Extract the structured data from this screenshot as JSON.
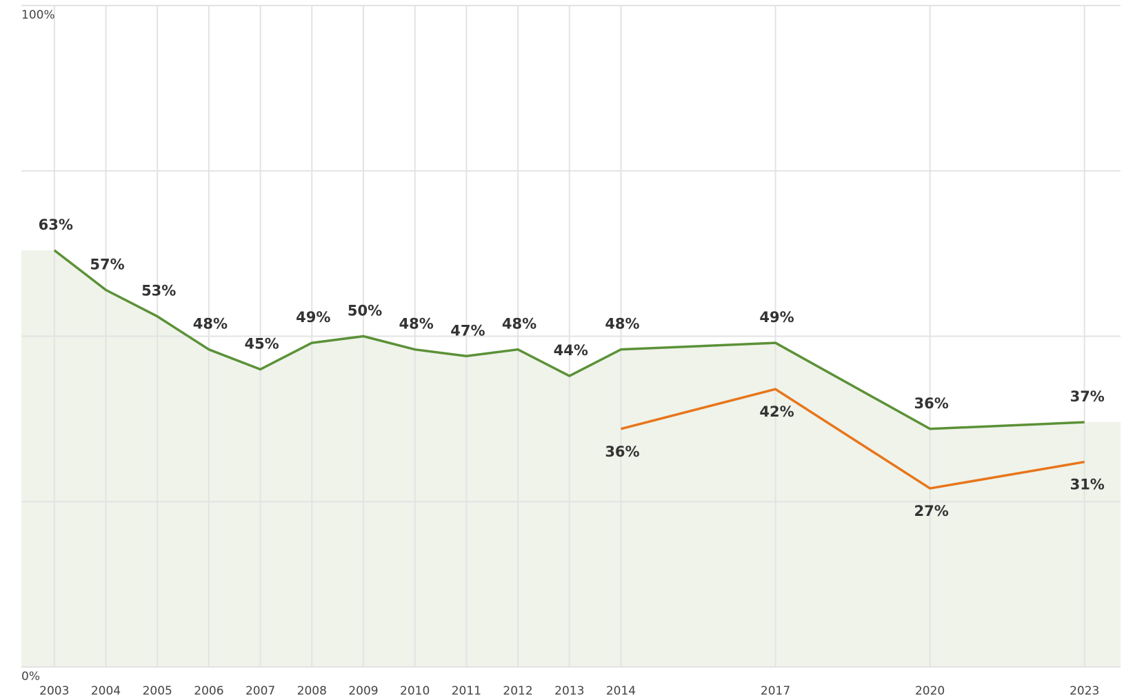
{
  "chart_data": {
    "type": "line",
    "x": [
      2003,
      2004,
      2005,
      2006,
      2007,
      2008,
      2009,
      2010,
      2011,
      2012,
      2013,
      2014,
      2017,
      2020,
      2023
    ],
    "series": [
      {
        "color": "#5b9137",
        "area_color": "#eff3ea",
        "values": [
          63,
          57,
          53,
          48,
          45,
          49,
          50,
          48,
          47,
          48,
          44,
          48,
          49,
          36,
          37
        ],
        "value_labels": [
          "63%",
          "57%",
          "53%",
          "48%",
          "45%",
          "49%",
          "50%",
          "48%",
          "47%",
          "48%",
          "44%",
          "48%",
          "49%",
          "36%",
          "37%"
        ]
      },
      {
        "color": "#e8751a",
        "values": [
          null,
          null,
          null,
          null,
          null,
          null,
          null,
          null,
          null,
          null,
          null,
          36,
          42,
          27,
          31
        ],
        "value_labels": [
          null,
          null,
          null,
          null,
          null,
          null,
          null,
          null,
          null,
          null,
          null,
          "36%",
          "42%",
          "27%",
          "31%"
        ]
      }
    ],
    "xlim": [
      2002.36,
      2023.7
    ],
    "xticks": [
      2003,
      2004,
      2005,
      2006,
      2007,
      2008,
      2009,
      2010,
      2011,
      2012,
      2013,
      2014,
      2017,
      2020,
      2023
    ],
    "ylim": [
      0,
      100
    ],
    "yticks": [
      {
        "value": 0,
        "label": "0%"
      },
      {
        "value": 100,
        "label": "100%"
      }
    ],
    "y_gridlines": [
      0,
      25,
      50,
      75,
      100
    ],
    "grid": true
  }
}
